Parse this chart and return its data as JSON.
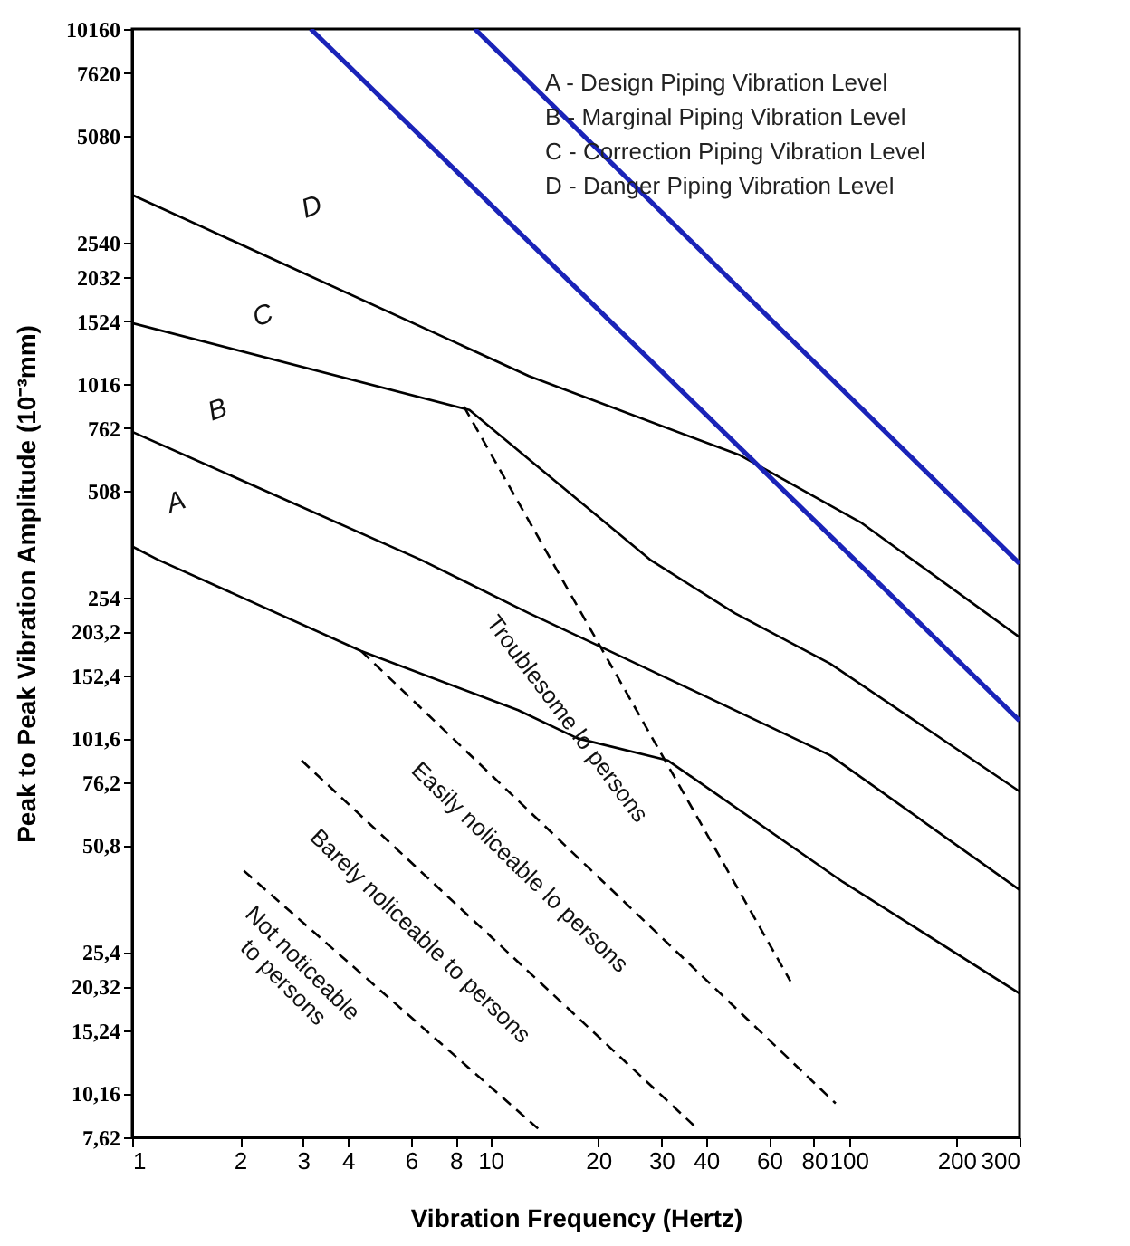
{
  "chart_data": {
    "type": "line",
    "xlabel": "Vibration Frequency (Hertz)",
    "ylabel": "Peak to Peak Vibration Amplitude  (10⁻³mm)",
    "log": "xy",
    "grid": false,
    "xlim": [
      1,
      300
    ],
    "xticks": [
      1,
      2,
      3,
      4,
      6,
      8,
      10,
      20,
      30,
      40,
      60,
      80,
      100,
      200,
      300
    ],
    "ylim": [
      7.62,
      10160
    ],
    "yticks": [
      {
        "value": 7.62,
        "label": "7,62"
      },
      {
        "value": 10.16,
        "label": "10,16"
      },
      {
        "value": 15.24,
        "label": "15,24"
      },
      {
        "value": 20.32,
        "label": "20,32"
      },
      {
        "value": 25.4,
        "label": "25,4"
      },
      {
        "value": 50.8,
        "label": "50,8"
      },
      {
        "value": 76.2,
        "label": "76,2"
      },
      {
        "value": 101.6,
        "label": "101,6"
      },
      {
        "value": 152.4,
        "label": "152,4"
      },
      {
        "value": 203.2,
        "label": "203,2"
      },
      254,
      508,
      762,
      1016,
      1524,
      2032,
      2540,
      5080,
      7620,
      10160
    ],
    "series": [
      {
        "color": "#000000",
        "line_style": "solid",
        "x": [
          1,
          1.18,
          4.36,
          11.95,
          17.5,
          31.3,
          96.4,
          300
        ],
        "values": [
          353,
          324,
          179,
          122,
          101.6,
          88,
          40,
          19.4
        ]
      },
      {
        "color": "#000000",
        "line_style": "solid",
        "x": [
          1,
          6.39,
          12.8,
          19,
          88.8,
          300
        ],
        "values": [
          743,
          324,
          229,
          190,
          91,
          38
        ]
      },
      {
        "color": "#000000",
        "line_style": "solid",
        "x": [
          1,
          8.74,
          27.9,
          48.1,
          88.8,
          300
        ],
        "values": [
          1505,
          856,
          324,
          229,
          165,
          72
        ]
      },
      {
        "color": "#000000",
        "line_style": "solid",
        "x": [
          1,
          12.8,
          49.8,
          108,
          300
        ],
        "values": [
          3460,
          1068,
          638,
          413,
          196
        ]
      },
      {
        "color": "#1a23b8",
        "line_style": "solid",
        "x": [
          9.05,
          300
        ],
        "values": [
          10160,
          316
        ]
      },
      {
        "color": "#1a23b8",
        "line_style": "solid",
        "x": [
          3.15,
          300
        ],
        "values": [
          10160,
          114
        ]
      },
      {
        "color": "#000000",
        "line_style": "dashed",
        "x": [
          8.44,
          68.8
        ],
        "values": [
          875,
          21
        ]
      },
      {
        "color": "#000000",
        "line_style": "dashed",
        "x": [
          4.36,
          92
        ],
        "values": [
          179,
          9.5
        ]
      },
      {
        "color": "#000000",
        "line_style": "dashed",
        "x": [
          2.97,
          38.1
        ],
        "values": [
          88,
          8.0
        ]
      },
      {
        "color": "#000000",
        "line_style": "dashed",
        "x": [
          2.05,
          13.9
        ],
        "values": [
          43,
          7.9
        ]
      }
    ],
    "annotations": [
      "A - Design Piping Vibration Level",
      "B - Marginal Piping Vibration Level",
      "C - Correction Piping Vibration Level",
      "D - Danger Piping Vibration Level",
      "A",
      "B",
      "C",
      "D",
      "Troublesome lo persons",
      "Easily noliceable lo persons",
      "Barely noliceable to persons",
      "Not noticeable\nto persons"
    ]
  }
}
